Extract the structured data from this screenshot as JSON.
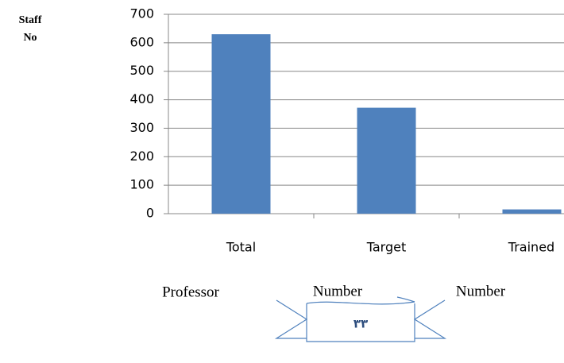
{
  "chart_data": {
    "type": "bar",
    "ylabel": [
      "Staff",
      "No"
    ],
    "categories": [
      "Total",
      "Target",
      "Trained"
    ],
    "values": [
      630,
      372,
      15
    ],
    "color": "#4f81bd",
    "ylim": [
      0,
      700
    ],
    "yticks": [
      0,
      100,
      200,
      300,
      400,
      500,
      600,
      700
    ],
    "grid": true
  },
  "captions": [
    "Professor",
    "Number",
    "Number"
  ],
  "page_number": "٣٣"
}
